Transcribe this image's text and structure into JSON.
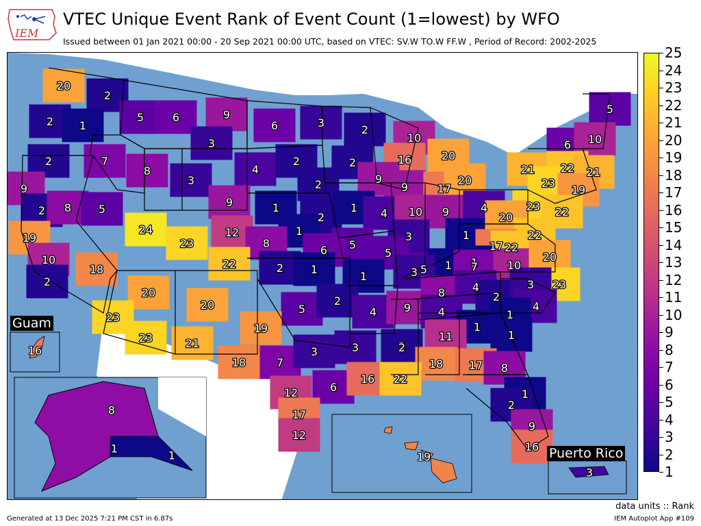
{
  "header": {
    "title": "VTEC Unique Event Rank of Event Count (1=lowest) by WFO",
    "subtitle": "Issued between 01 Jan 2021 00:00 - 20 Sep 2021 00:00 UTC, based on VTEC: SV.W TO.W FF.W  , Period of Record: 2002-2025",
    "logo_text": "IEM"
  },
  "colorbar": {
    "ticks": [
      "1",
      "2",
      "3",
      "4",
      "5",
      "6",
      "7",
      "8",
      "9",
      "10",
      "11",
      "12",
      "13",
      "14",
      "15",
      "16",
      "17",
      "18",
      "19",
      "20",
      "21",
      "22",
      "23",
      "24",
      "25"
    ],
    "units": "data units :: Rank"
  },
  "insets": {
    "guam": {
      "title": "Guam",
      "rank": "16"
    },
    "puerto_rico": {
      "title": "Puerto Rico",
      "rank": "3"
    },
    "alaska": {
      "ranks": [
        "8",
        "1",
        "1"
      ]
    },
    "hawaii": {
      "rank": "19"
    }
  },
  "footer": {
    "generated": "Generated at 13 Dec 2025 7:21 PM CST in 6.87s",
    "app": "IEM Autoplot App #109"
  },
  "colors": {
    "ocean": "#6fa0d0",
    "land_outside": "#ffffff",
    "border": "#000000"
  },
  "ranks": [
    {
      "v": "20"
    },
    {
      "v": "2"
    },
    {
      "v": "5"
    },
    {
      "v": "6"
    },
    {
      "v": "9"
    },
    {
      "v": "6"
    },
    {
      "v": "3"
    },
    {
      "v": "5"
    },
    {
      "v": "2"
    },
    {
      "v": "1"
    },
    {
      "v": "3"
    },
    {
      "v": "2"
    },
    {
      "v": "10"
    },
    {
      "v": "6"
    },
    {
      "v": "10"
    },
    {
      "v": "2"
    },
    {
      "v": "7"
    },
    {
      "v": "8"
    },
    {
      "v": "4"
    },
    {
      "v": "2"
    },
    {
      "v": "2"
    },
    {
      "v": "16"
    },
    {
      "v": "20"
    },
    {
      "v": "21"
    },
    {
      "v": "22"
    },
    {
      "v": "21"
    },
    {
      "v": "9"
    },
    {
      "v": "3"
    },
    {
      "v": "2"
    },
    {
      "v": "9"
    },
    {
      "v": "9"
    },
    {
      "v": "17"
    },
    {
      "v": "20"
    },
    {
      "v": "23"
    },
    {
      "v": "19"
    },
    {
      "v": "2"
    },
    {
      "v": "8"
    },
    {
      "v": "5"
    },
    {
      "v": "9"
    },
    {
      "v": "1"
    },
    {
      "v": "2"
    },
    {
      "v": "1"
    },
    {
      "v": "4"
    },
    {
      "v": "10"
    },
    {
      "v": "9"
    },
    {
      "v": "4"
    },
    {
      "v": "23"
    },
    {
      "v": "22"
    },
    {
      "v": "19"
    },
    {
      "v": "24"
    },
    {
      "v": "23"
    },
    {
      "v": "12"
    },
    {
      "v": "1"
    },
    {
      "v": "5"
    },
    {
      "v": "3"
    },
    {
      "v": "1"
    },
    {
      "v": "20"
    },
    {
      "v": "22"
    },
    {
      "v": "10"
    },
    {
      "v": "8"
    },
    {
      "v": "6"
    },
    {
      "v": "5"
    },
    {
      "v": "17"
    },
    {
      "v": "22"
    },
    {
      "v": "18"
    },
    {
      "v": "22"
    },
    {
      "v": "2"
    },
    {
      "v": "1"
    },
    {
      "v": "5"
    },
    {
      "v": "1"
    },
    {
      "v": "1"
    },
    {
      "v": "7"
    },
    {
      "v": "10"
    },
    {
      "v": "20"
    },
    {
      "v": "2"
    },
    {
      "v": "1"
    },
    {
      "v": "3"
    },
    {
      "v": "23"
    },
    {
      "v": "20"
    },
    {
      "v": "20"
    },
    {
      "v": "5"
    },
    {
      "v": "2"
    },
    {
      "v": "4"
    },
    {
      "v": "9"
    },
    {
      "v": "8"
    },
    {
      "v": "4"
    },
    {
      "v": "4"
    },
    {
      "v": "2"
    },
    {
      "v": "3"
    },
    {
      "v": "4"
    },
    {
      "v": "1"
    },
    {
      "v": "1"
    },
    {
      "v": "2"
    },
    {
      "v": "23"
    },
    {
      "v": "19"
    },
    {
      "v": "1"
    },
    {
      "v": "23"
    },
    {
      "v": "21"
    },
    {
      "v": "11"
    },
    {
      "v": "7"
    },
    {
      "v": "3"
    },
    {
      "v": "3"
    },
    {
      "v": "2"
    },
    {
      "v": "18"
    },
    {
      "v": "18"
    },
    {
      "v": "17"
    },
    {
      "v": "8"
    },
    {
      "v": "6"
    },
    {
      "v": "16"
    },
    {
      "v": "22"
    },
    {
      "v": "12"
    },
    {
      "v": "1"
    },
    {
      "v": "17"
    },
    {
      "v": "2"
    },
    {
      "v": "12"
    },
    {
      "v": "9"
    },
    {
      "v": "16"
    }
  ]
}
